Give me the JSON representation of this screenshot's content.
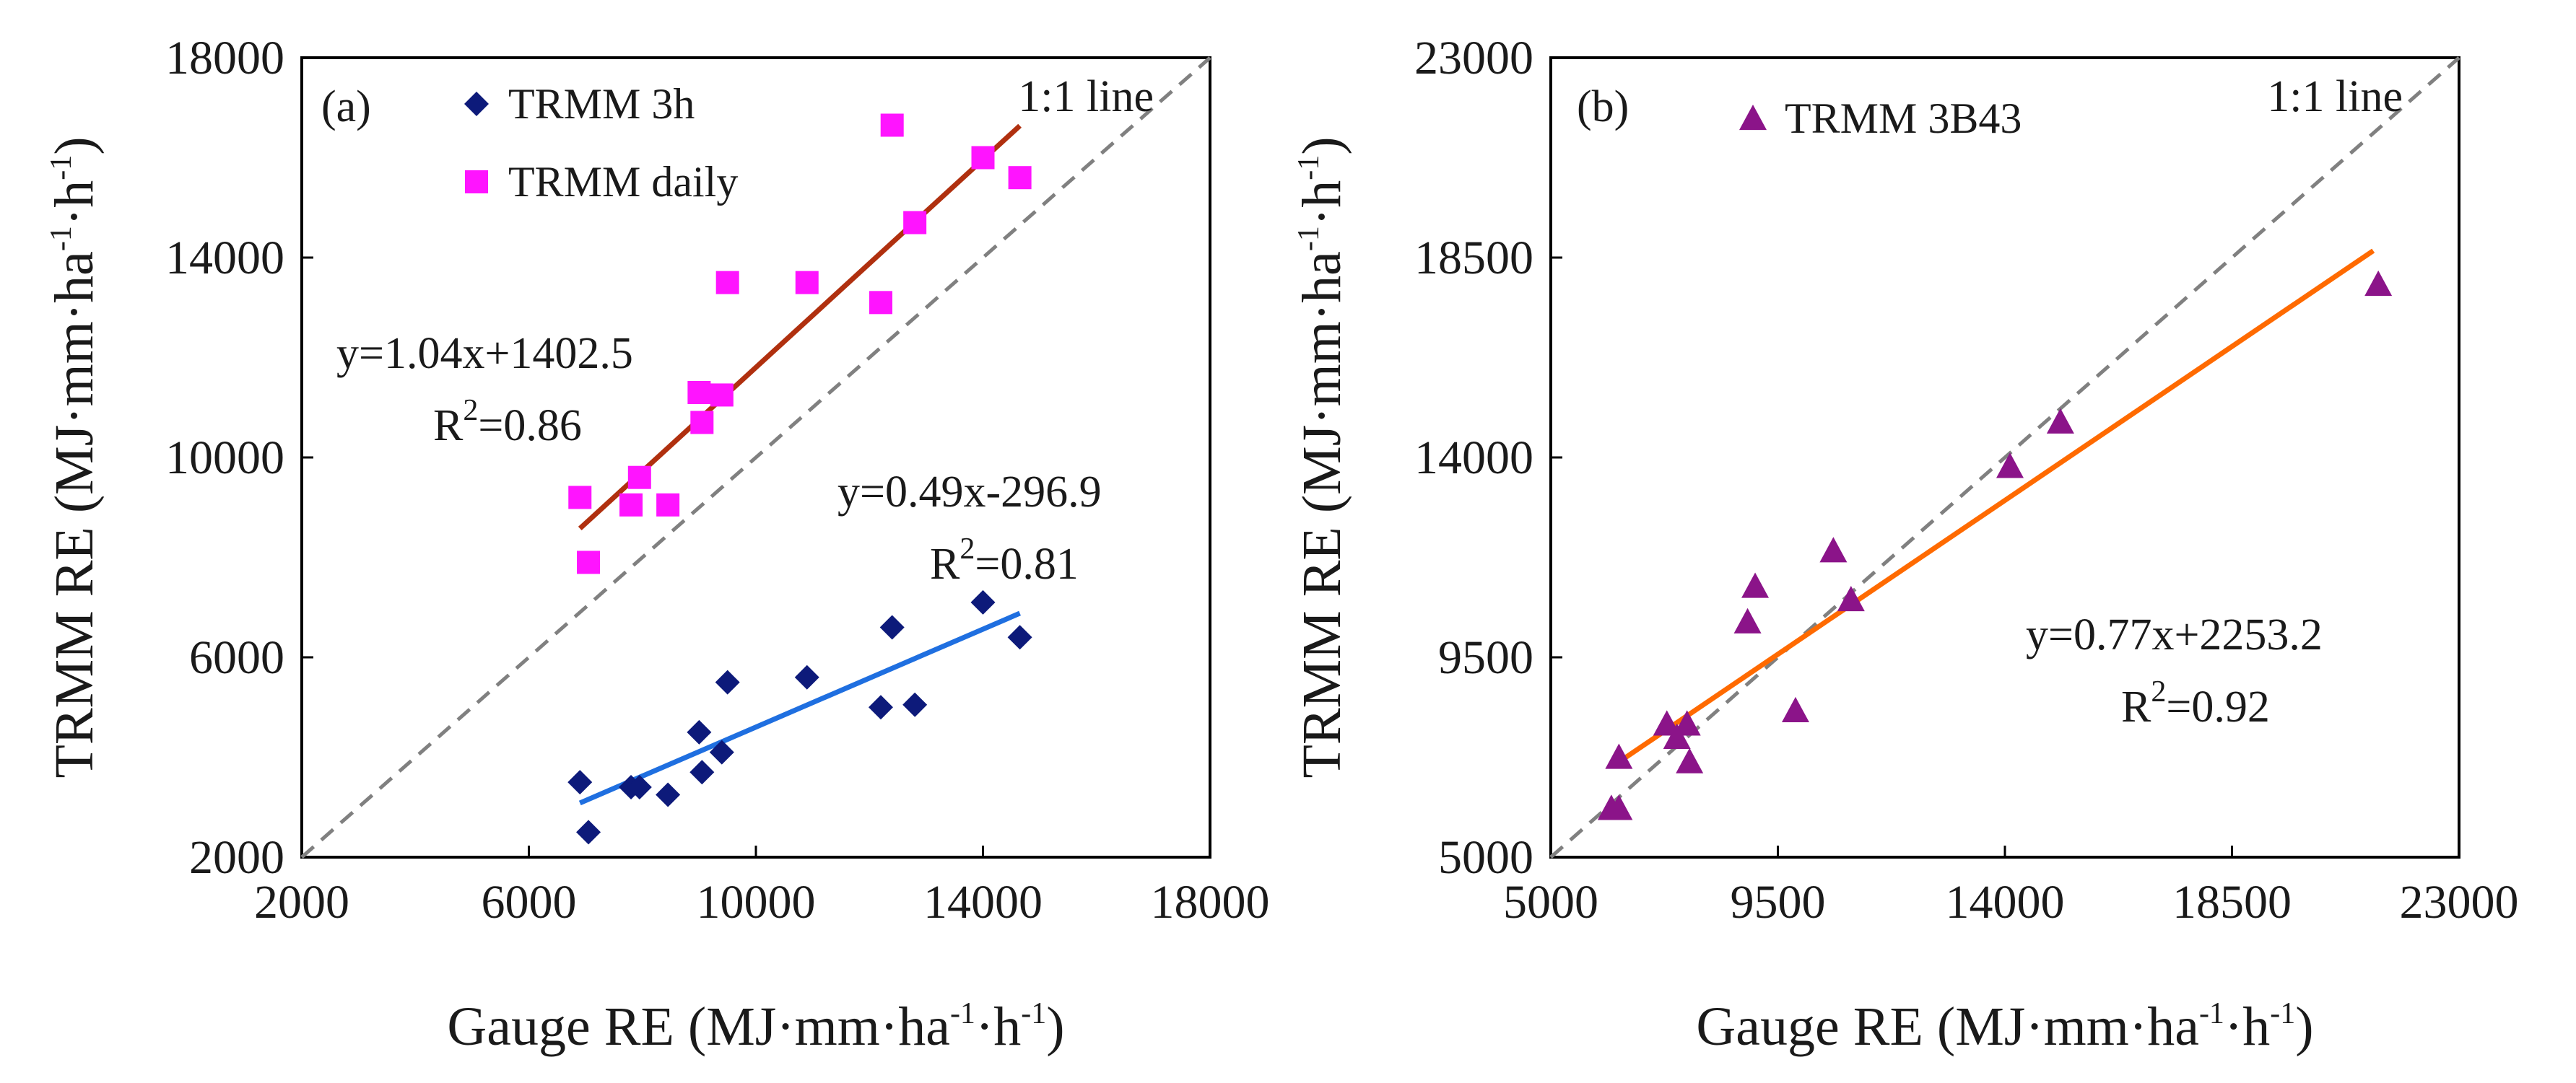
{
  "chart_data": [
    {
      "id": "a",
      "type": "scatter",
      "panel_label": "(a)",
      "xlabel": "Gauge RE (MJ·mm·ha⁻¹·h⁻¹)",
      "ylabel": "TRMM RE (MJ·mm·ha⁻¹·h⁻¹)",
      "xlim": [
        2000,
        18000
      ],
      "ylim": [
        2000,
        18000
      ],
      "xticks": [
        "2000",
        "6000",
        "10000",
        "14000",
        "18000"
      ],
      "yticks": [
        "2000",
        "6000",
        "10000",
        "14000",
        "18000"
      ],
      "one_to_one_label": "1:1 line",
      "legend_position": "top-left",
      "series": [
        {
          "name": "TRMM 3h",
          "marker": "diamond",
          "color": "#0d1a7a",
          "points": [
            [
              6900,
              3500
            ],
            [
              7050,
              2500
            ],
            [
              7800,
              3400
            ],
            [
              7950,
              3400
            ],
            [
              8450,
              3250
            ],
            [
              9000,
              4500
            ],
            [
              9050,
              3700
            ],
            [
              9400,
              4100
            ],
            [
              9500,
              5500
            ],
            [
              10900,
              5600
            ],
            [
              12200,
              5000
            ],
            [
              12400,
              6600
            ],
            [
              12800,
              5050
            ],
            [
              14000,
              7100
            ],
            [
              14650,
              6400
            ]
          ],
          "fit": {
            "equation": "y=0.49x-296.9",
            "r2_label": "R",
            "r2_value": "=0.81",
            "x_range": [
              6900,
              14650
            ],
            "color": "#1f6fe0"
          }
        },
        {
          "name": "TRMM daily",
          "marker": "square",
          "color": "#ff14ff",
          "points": [
            [
              6900,
              9200
            ],
            [
              7050,
              7900
            ],
            [
              7800,
              9050
            ],
            [
              7950,
              9600
            ],
            [
              8450,
              9050
            ],
            [
              9000,
              11300
            ],
            [
              9050,
              10700
            ],
            [
              9400,
              11250
            ],
            [
              9500,
              13500
            ],
            [
              10900,
              13500
            ],
            [
              12200,
              13100
            ],
            [
              12400,
              16650
            ],
            [
              12800,
              14700
            ],
            [
              14000,
              16000
            ],
            [
              14650,
              15600
            ]
          ],
          "fit": {
            "equation": "y=1.04x+1402.5",
            "r2_label": "R",
            "r2_value": "=0.86",
            "x_range": [
              6900,
              14650
            ],
            "color": "#b0300f"
          }
        }
      ]
    },
    {
      "id": "b",
      "type": "scatter",
      "panel_label": "(b)",
      "xlabel": "Gauge RE (MJ·mm·ha⁻¹·h⁻¹)",
      "ylabel": "TRMM RE (MJ·mm·ha⁻¹·h⁻¹)",
      "xlim": [
        5000,
        23000
      ],
      "ylim": [
        5000,
        23000
      ],
      "xticks": [
        "5000",
        "9500",
        "14000",
        "18500",
        "23000"
      ],
      "yticks": [
        "5000",
        "9500",
        "14000",
        "18500",
        "23000"
      ],
      "one_to_one_label": "1:1 line",
      "legend_position": "top-left",
      "series": [
        {
          "name": "TRMM 3B43",
          "marker": "triangle",
          "color": "#8b1489",
          "points": [
            [
              6200,
              6100
            ],
            [
              6350,
              6100
            ],
            [
              6350,
              7250
            ],
            [
              7300,
              8000
            ],
            [
              7500,
              7700
            ],
            [
              7700,
              8000
            ],
            [
              7750,
              7150
            ],
            [
              8900,
              10300
            ],
            [
              9050,
              11100
            ],
            [
              9850,
              8300
            ],
            [
              10600,
              11900
            ],
            [
              10950,
              10800
            ],
            [
              14100,
              13800
            ],
            [
              15100,
              14800
            ],
            [
              21400,
              17900
            ]
          ],
          "fit": {
            "equation": "y=0.77x+2253.2",
            "r2_label": "R",
            "r2_value": "=0.92",
            "x_range": [
              6300,
              21300
            ],
            "color": "#ff6a00"
          }
        }
      ]
    }
  ]
}
